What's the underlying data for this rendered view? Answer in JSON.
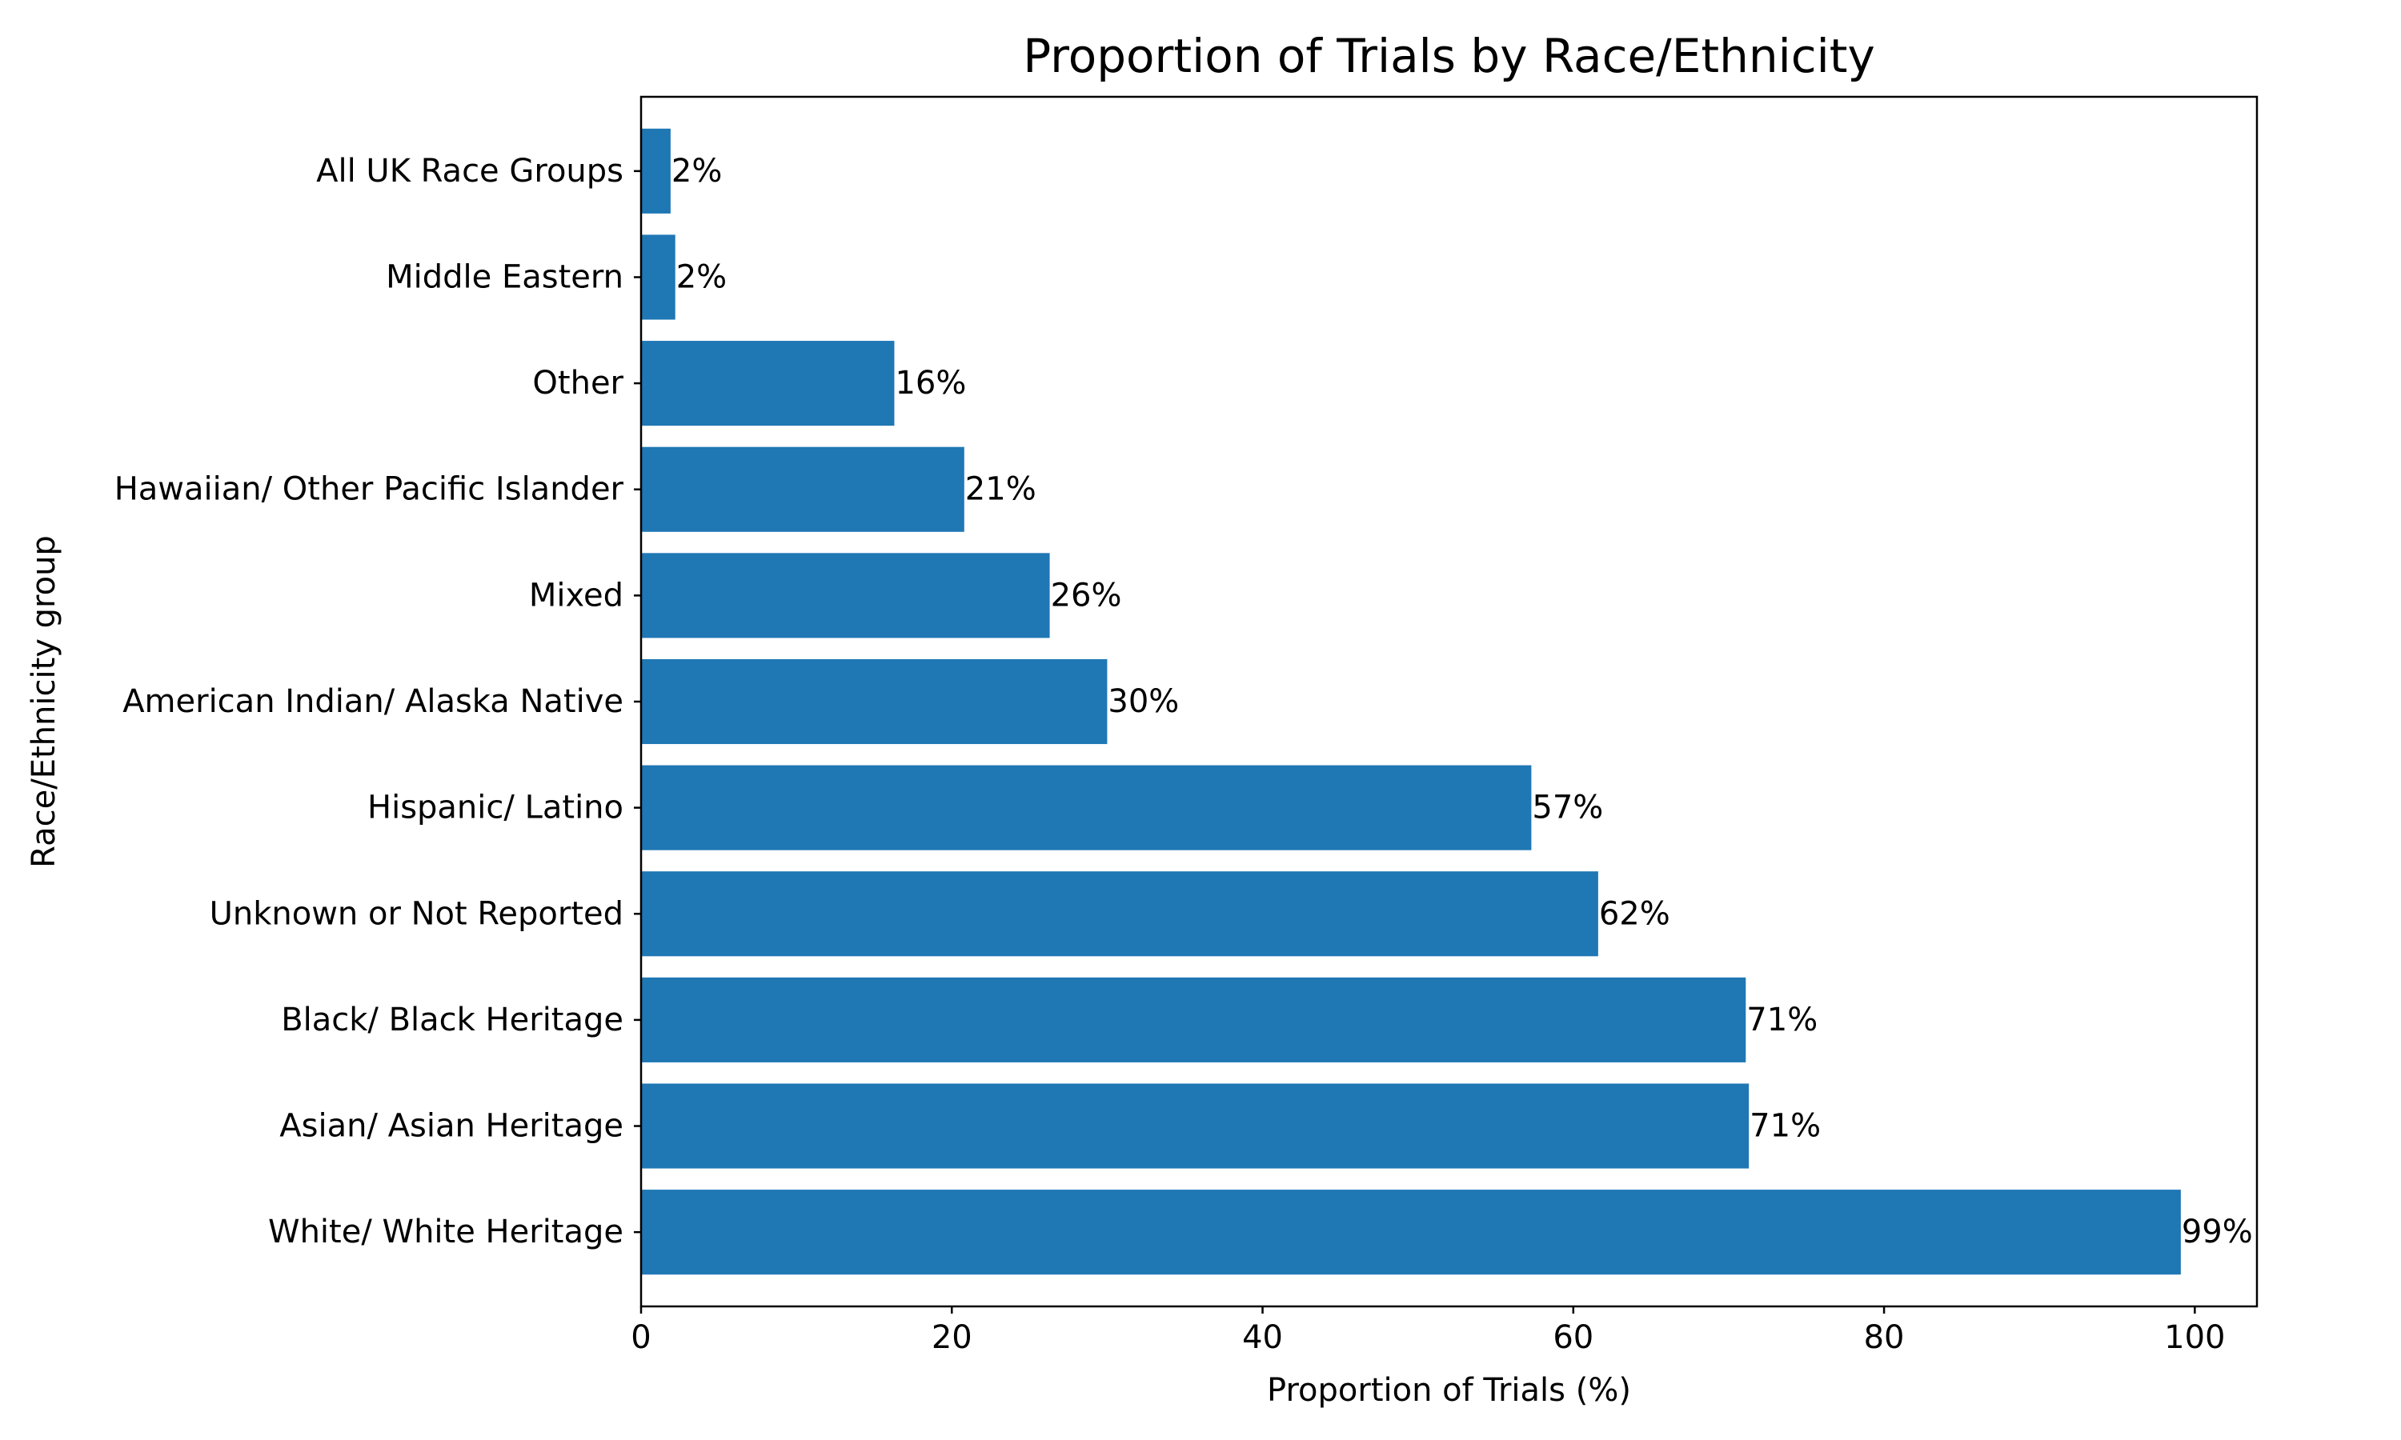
{
  "chart_data": {
    "type": "bar",
    "orientation": "horizontal",
    "title": "Proportion of Trials by Race/Ethnicity",
    "xlabel": "Proportion of Trials (%)",
    "ylabel": "Race/Ethnicity group",
    "xlim": [
      0,
      104
    ],
    "x_ticks": [
      0,
      20,
      40,
      60,
      80,
      100
    ],
    "grid": false,
    "bar_color": "#1f77b4",
    "categories": [
      "White/ White Heritage",
      "Asian/ Asian Heritage",
      "Black/ Black Heritage",
      "Unknown or Not Reported",
      "Hispanic/ Latino",
      "American Indian/ Alaska Native",
      "Mixed",
      "Hawaiian/ Other Pacific Islander",
      "Other",
      "Middle Eastern",
      "All UK Race Groups"
    ],
    "values": [
      99.1,
      71.3,
      71.1,
      61.6,
      57.3,
      30.0,
      26.3,
      20.8,
      16.3,
      2.2,
      1.9
    ],
    "data_labels": [
      "99%",
      "71%",
      "71%",
      "62%",
      "57%",
      "30%",
      "26%",
      "21%",
      "16%",
      "2%",
      "2%"
    ]
  }
}
